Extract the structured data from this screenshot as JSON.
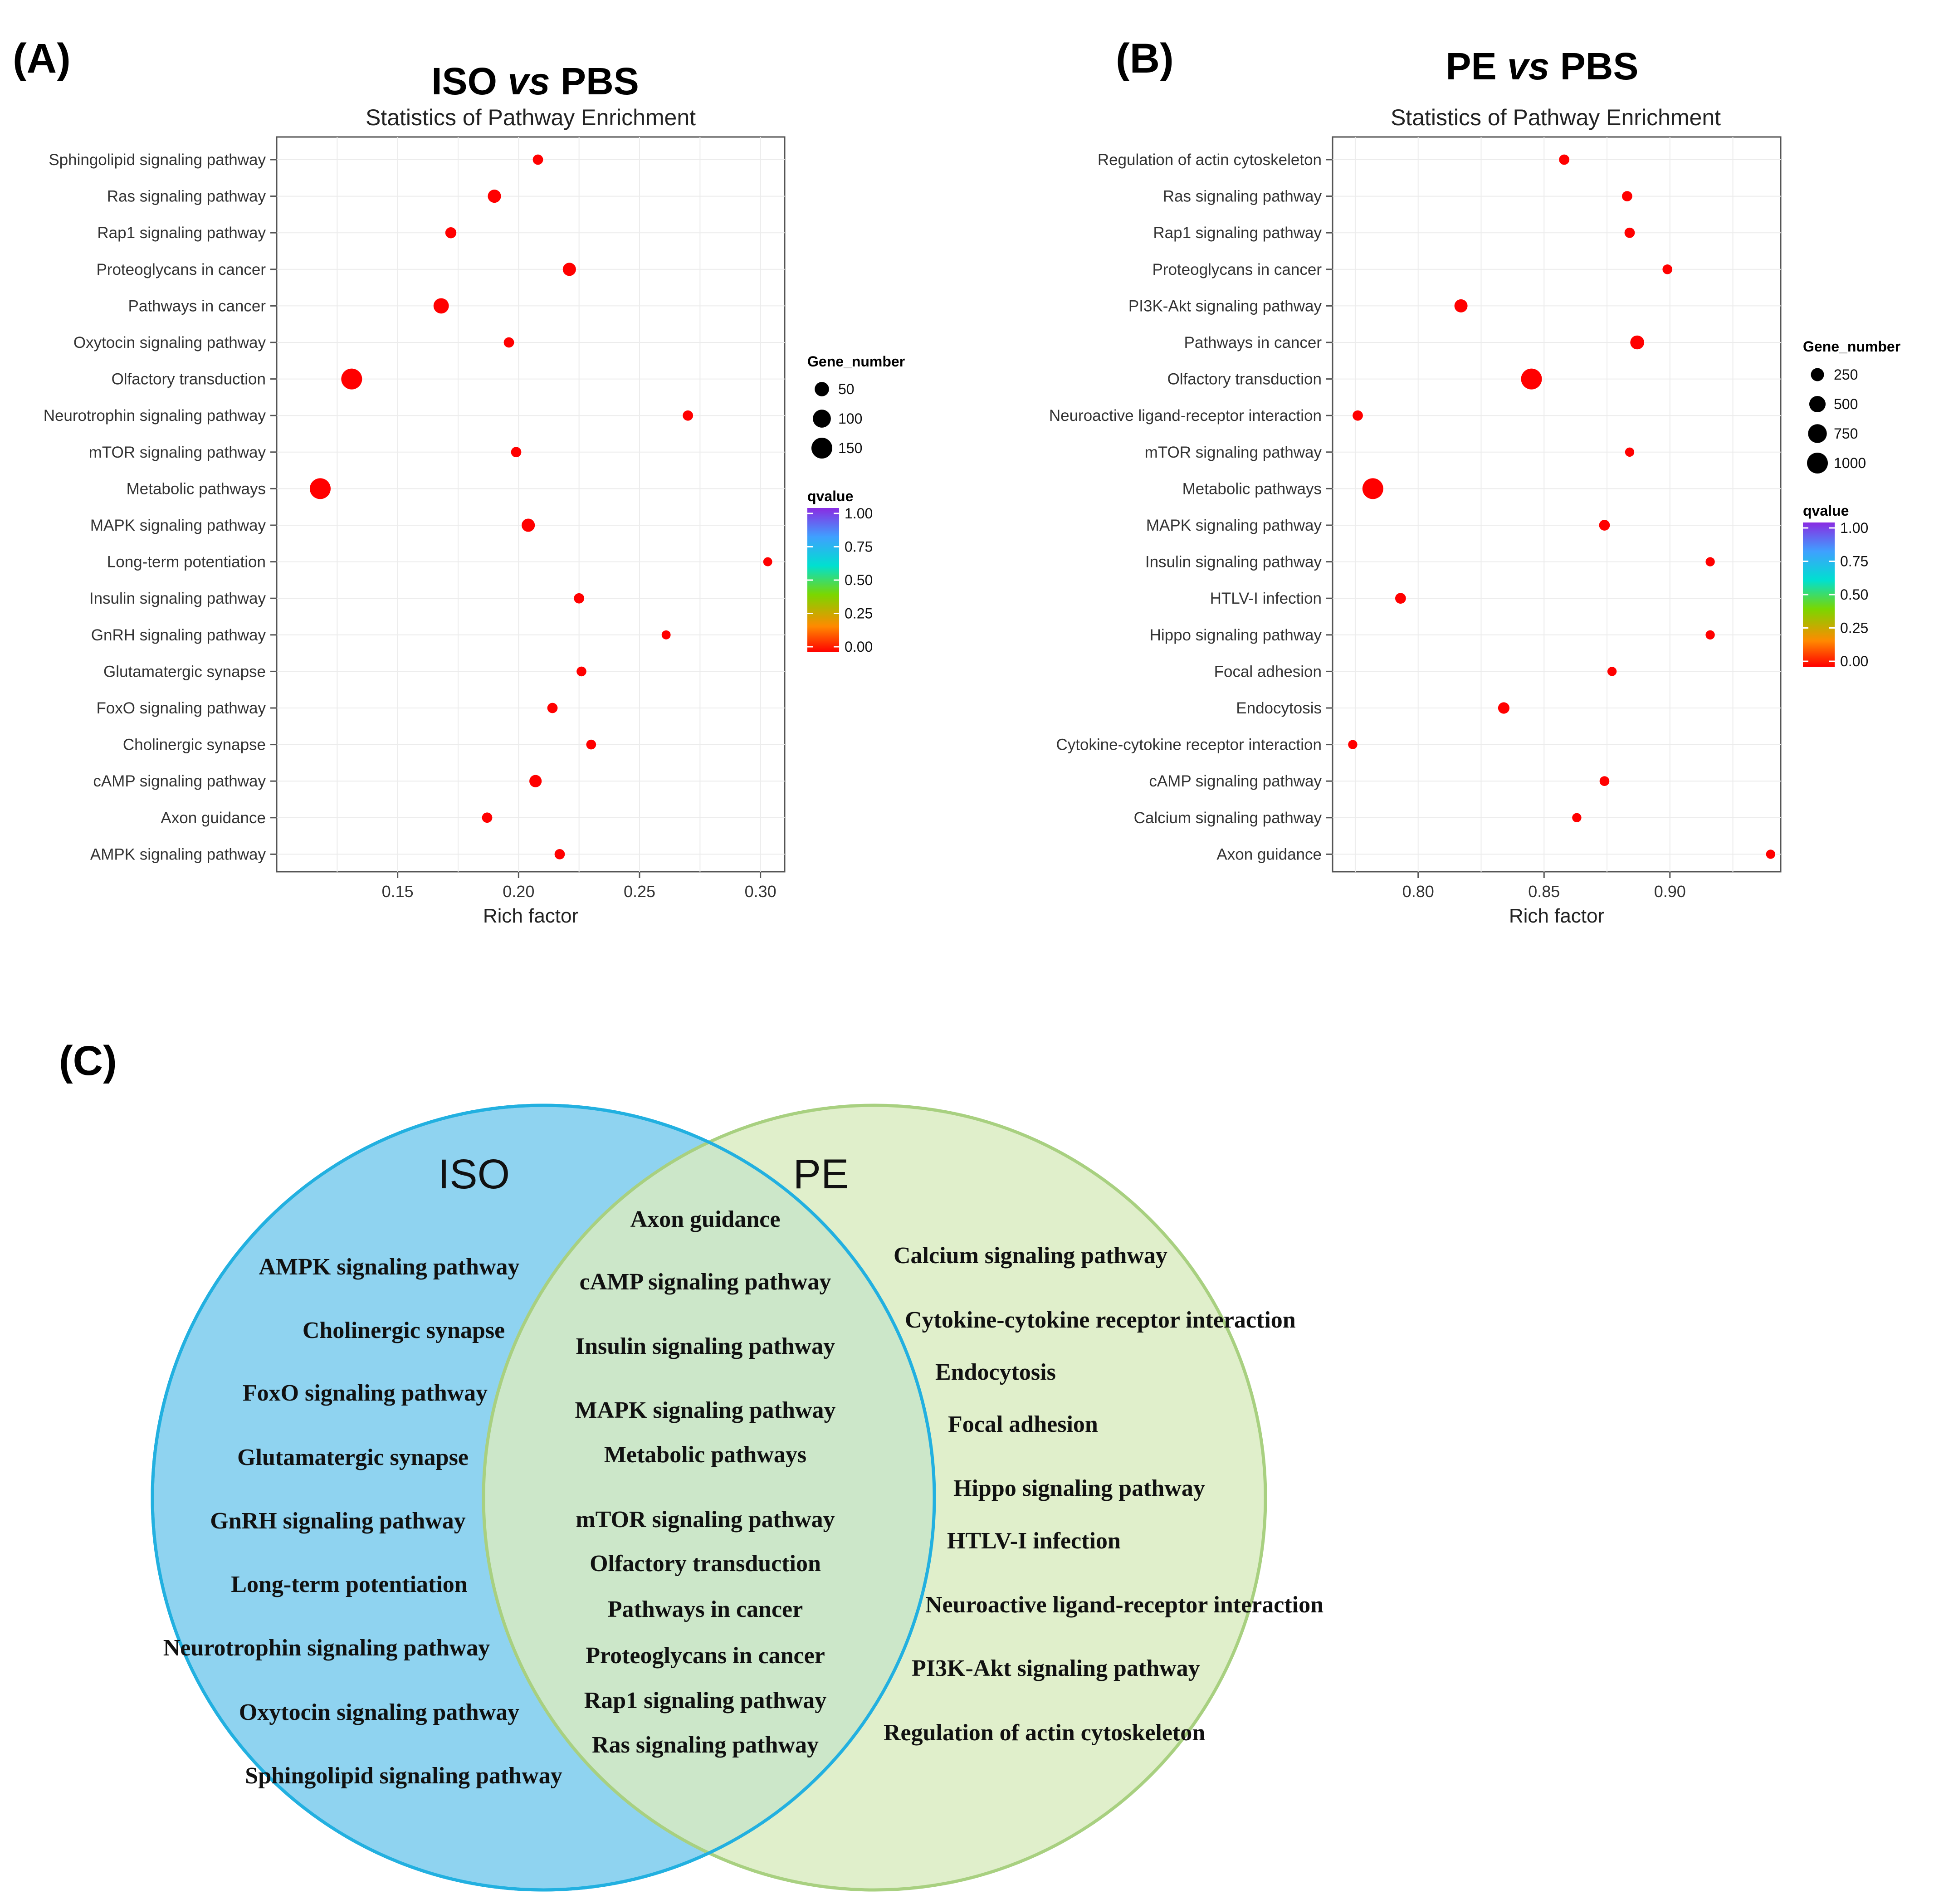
{
  "chart_data": [
    {
      "type": "scatter",
      "panel": "(A)",
      "title_parts": [
        "ISO",
        "vs",
        "PBS"
      ],
      "subtitle": "Statistics of Pathway Enrichment",
      "xlabel": "Rich factor",
      "xlim": [
        0.1,
        0.31
      ],
      "xticks": [
        "0.15",
        "0.20",
        "0.25",
        "0.30"
      ],
      "xtick_values": [
        0.15,
        0.2,
        0.25,
        0.3
      ],
      "size_legend": {
        "title": "Gene_number",
        "values": [
          50,
          100,
          150
        ],
        "labels": [
          "50",
          "100",
          "150"
        ]
      },
      "color_legend": {
        "title": "qvalue",
        "range": [
          0,
          1
        ],
        "labels": [
          "1.00",
          "0.75",
          "0.50",
          "0.25",
          "0.00"
        ],
        "colors": [
          "#ff0000",
          "#ff8a00",
          "#7ad700",
          "#00e0d0",
          "#3fa0ff",
          "#8a2be2"
        ]
      },
      "points": [
        {
          "pathway": "Sphingolipid signaling pathway",
          "rich_factor": 0.208,
          "gene_number": 15,
          "qvalue": 0.0
        },
        {
          "pathway": "Ras signaling pathway",
          "rich_factor": 0.19,
          "gene_number": 38,
          "qvalue": 0.0
        },
        {
          "pathway": "Rap1 signaling pathway",
          "rich_factor": 0.172,
          "gene_number": 20,
          "qvalue": 0.0
        },
        {
          "pathway": "Proteoglycans in cancer",
          "rich_factor": 0.221,
          "gene_number": 38,
          "qvalue": 0.0
        },
        {
          "pathway": "Pathways in cancer",
          "rich_factor": 0.168,
          "gene_number": 62,
          "qvalue": 0.0
        },
        {
          "pathway": "Oxytocin signaling pathway",
          "rich_factor": 0.196,
          "gene_number": 15,
          "qvalue": 0.0
        },
        {
          "pathway": "Olfactory transduction",
          "rich_factor": 0.131,
          "gene_number": 150,
          "qvalue": 0.0
        },
        {
          "pathway": "Neurotrophin signaling pathway",
          "rich_factor": 0.27,
          "gene_number": 15,
          "qvalue": 0.0
        },
        {
          "pathway": "mTOR signaling pathway",
          "rich_factor": 0.199,
          "gene_number": 15,
          "qvalue": 0.0
        },
        {
          "pathway": "Metabolic pathways",
          "rich_factor": 0.118,
          "gene_number": 150,
          "qvalue": 0.0
        },
        {
          "pathway": "MAPK signaling pathway",
          "rich_factor": 0.204,
          "gene_number": 38,
          "qvalue": 0.0
        },
        {
          "pathway": "Long-term potentiation",
          "rich_factor": 0.303,
          "gene_number": 8,
          "qvalue": 0.0
        },
        {
          "pathway": "Insulin signaling pathway",
          "rich_factor": 0.225,
          "gene_number": 15,
          "qvalue": 0.0
        },
        {
          "pathway": "GnRH signaling pathway",
          "rich_factor": 0.261,
          "gene_number": 8,
          "qvalue": 0.0
        },
        {
          "pathway": "Glutamatergic synapse",
          "rich_factor": 0.226,
          "gene_number": 12,
          "qvalue": 0.0
        },
        {
          "pathway": "FoxO signaling pathway",
          "rich_factor": 0.214,
          "gene_number": 15,
          "qvalue": 0.0
        },
        {
          "pathway": "Cholinergic synapse",
          "rich_factor": 0.23,
          "gene_number": 12,
          "qvalue": 0.0
        },
        {
          "pathway": "cAMP signaling pathway",
          "rich_factor": 0.207,
          "gene_number": 30,
          "qvalue": 0.0
        },
        {
          "pathway": "Axon guidance",
          "rich_factor": 0.187,
          "gene_number": 15,
          "qvalue": 0.0
        },
        {
          "pathway": "AMPK signaling pathway",
          "rich_factor": 0.217,
          "gene_number": 15,
          "qvalue": 0.0
        }
      ]
    },
    {
      "type": "scatter",
      "panel": "(B)",
      "title_parts": [
        "PE",
        "vs",
        "PBS"
      ],
      "subtitle": "Statistics of Pathway Enrichment",
      "xlabel": "Rich factor",
      "xlim": [
        0.766,
        0.944
      ],
      "xticks": [
        "0.80",
        "0.85",
        "0.90"
      ],
      "xtick_values": [
        0.8,
        0.85,
        0.9
      ],
      "size_legend": {
        "title": "Gene_number",
        "values": [
          250,
          500,
          750,
          1000
        ],
        "labels": [
          "250",
          "500",
          "750",
          "1000"
        ]
      },
      "color_legend": {
        "title": "qvalue",
        "range": [
          0,
          1
        ],
        "labels": [
          "1.00",
          "0.75",
          "0.50",
          "0.25",
          "0.00"
        ],
        "colors": [
          "#ff0000",
          "#ff8a00",
          "#7ad700",
          "#00e0d0",
          "#3fa0ff",
          "#8a2be2"
        ]
      },
      "points": [
        {
          "pathway": "Regulation of actin cytoskeleton",
          "rich_factor": 0.858,
          "gene_number": 100,
          "qvalue": 0.0
        },
        {
          "pathway": "Ras signaling pathway",
          "rich_factor": 0.883,
          "gene_number": 100,
          "qvalue": 0.0
        },
        {
          "pathway": "Rap1 signaling pathway",
          "rich_factor": 0.884,
          "gene_number": 100,
          "qvalue": 0.0
        },
        {
          "pathway": "Proteoglycans in cancer",
          "rich_factor": 0.899,
          "gene_number": 80,
          "qvalue": 0.0
        },
        {
          "pathway": "PI3K-Akt signaling pathway",
          "rich_factor": 0.817,
          "gene_number": 250,
          "qvalue": 0.0
        },
        {
          "pathway": "Pathways in cancer",
          "rich_factor": 0.887,
          "gene_number": 300,
          "qvalue": 0.0
        },
        {
          "pathway": "Olfactory transduction",
          "rich_factor": 0.845,
          "gene_number": 1000,
          "qvalue": 0.0
        },
        {
          "pathway": "Neuroactive ligand-receptor interaction",
          "rich_factor": 0.776,
          "gene_number": 100,
          "qvalue": 0.0
        },
        {
          "pathway": "mTOR signaling pathway",
          "rich_factor": 0.884,
          "gene_number": 60,
          "qvalue": 0.0
        },
        {
          "pathway": "Metabolic pathways",
          "rich_factor": 0.782,
          "gene_number": 1000,
          "qvalue": 0.0
        },
        {
          "pathway": "MAPK signaling pathway",
          "rich_factor": 0.874,
          "gene_number": 120,
          "qvalue": 0.0
        },
        {
          "pathway": "Insulin signaling pathway",
          "rich_factor": 0.916,
          "gene_number": 60,
          "qvalue": 0.0
        },
        {
          "pathway": "HTLV-I infection",
          "rich_factor": 0.793,
          "gene_number": 120,
          "qvalue": 0.0
        },
        {
          "pathway": "Hippo signaling pathway",
          "rich_factor": 0.916,
          "gene_number": 60,
          "qvalue": 0.0
        },
        {
          "pathway": "Focal adhesion",
          "rich_factor": 0.877,
          "gene_number": 60,
          "qvalue": 0.0
        },
        {
          "pathway": "Endocytosis",
          "rich_factor": 0.834,
          "gene_number": 150,
          "qvalue": 0.0
        },
        {
          "pathway": "Cytokine-cytokine receptor interaction",
          "rich_factor": 0.774,
          "gene_number": 60,
          "qvalue": 0.0
        },
        {
          "pathway": "cAMP signaling pathway",
          "rich_factor": 0.874,
          "gene_number": 80,
          "qvalue": 0.0
        },
        {
          "pathway": "Calcium signaling pathway",
          "rich_factor": 0.863,
          "gene_number": 60,
          "qvalue": 0.0
        },
        {
          "pathway": "Axon guidance",
          "rich_factor": 0.94,
          "gene_number": 60,
          "qvalue": 0.0
        }
      ]
    }
  ],
  "venn": {
    "panel": "(C)",
    "left_label": "ISO",
    "right_label": "PE",
    "left_color": "#8fd3f0",
    "left_stroke": "#22b0e0",
    "right_color": "#d9ecc0",
    "right_stroke": "#a8d080",
    "overlap_color": "#9fd8c0",
    "iso_only": [
      "AMPK signaling pathway",
      "Cholinergic synapse",
      "FoxO signaling pathway",
      "Glutamatergic synapse",
      "GnRH signaling pathway",
      "Long-term potentiation",
      "Neurotrophin signaling pathway",
      "Oxytocin signaling pathway",
      "Sphingolipid signaling pathway"
    ],
    "shared": [
      "Axon guidance",
      "cAMP signaling pathway",
      "Insulin signaling pathway",
      "MAPK signaling pathway",
      "Metabolic pathways",
      "mTOR signaling pathway",
      "Olfactory transduction",
      "Pathways in cancer",
      "Proteoglycans in cancer",
      "Rap1 signaling pathway",
      "Ras signaling pathway"
    ],
    "pe_only": [
      "Calcium signaling pathway",
      "Cytokine-cytokine receptor interaction",
      "Endocytosis",
      "Focal adhesion",
      "Hippo signaling pathway",
      "HTLV-I infection",
      "Neuroactive ligand-receptor interaction",
      "PI3K-Akt signaling pathway",
      "Regulation of actin cytoskeleton"
    ]
  }
}
